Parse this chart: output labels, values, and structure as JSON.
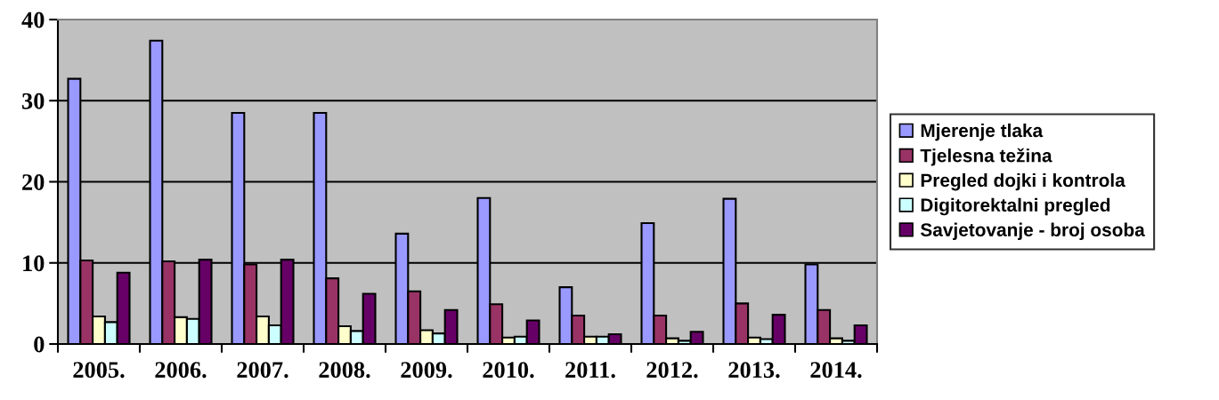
{
  "chart_data": {
    "type": "bar",
    "categories": [
      "2005.",
      "2006.",
      "2007.",
      "2008.",
      "2009.",
      "2010.",
      "2011.",
      "2012.",
      "2013.",
      "2014."
    ],
    "series": [
      {
        "name": "Mjerenje tlaka",
        "color": "#9999ff",
        "values": [
          32.7,
          37.4,
          28.5,
          28.5,
          13.6,
          18.0,
          7.0,
          14.9,
          17.9,
          9.8
        ]
      },
      {
        "name": "Tjelesna težina",
        "color": "#993366",
        "values": [
          10.3,
          10.2,
          9.8,
          8.1,
          6.5,
          4.9,
          3.5,
          3.5,
          5.0,
          4.2
        ]
      },
      {
        "name": "Pregled dojki i kontrola",
        "color": "#ffffcc",
        "values": [
          3.4,
          3.3,
          3.4,
          2.2,
          1.7,
          0.8,
          0.9,
          0.7,
          0.8,
          0.7
        ]
      },
      {
        "name": "Digitorektalni pregled",
        "color": "#ccffff",
        "values": [
          2.7,
          3.1,
          2.3,
          1.6,
          1.3,
          0.9,
          0.9,
          0.4,
          0.6,
          0.4
        ]
      },
      {
        "name": "Savjetovanje - broj osoba",
        "color": "#660066",
        "values": [
          8.8,
          10.4,
          10.4,
          6.2,
          4.2,
          2.9,
          1.2,
          1.5,
          3.6,
          2.3
        ]
      }
    ],
    "ylim": [
      0,
      40
    ],
    "yticks": [
      0,
      10,
      20,
      30,
      40
    ],
    "grid": "y",
    "legend": "right"
  }
}
